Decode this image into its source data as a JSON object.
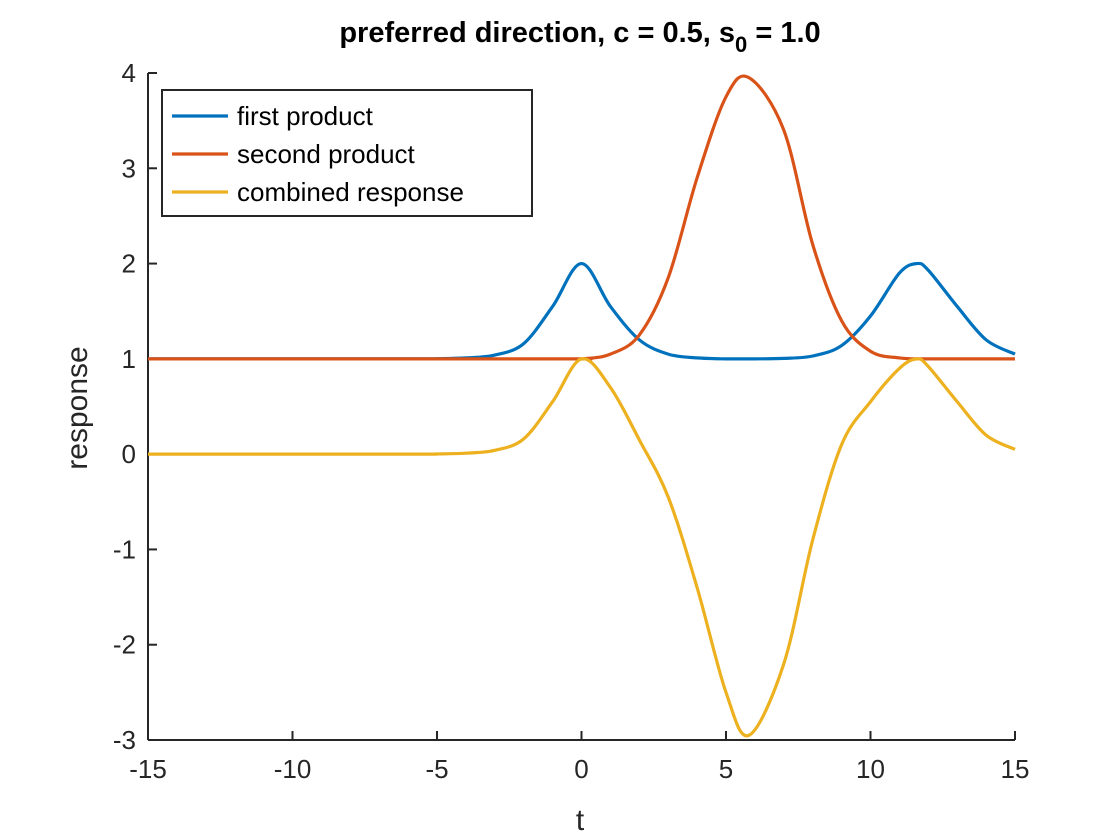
{
  "chart_data": {
    "type": "line",
    "title": {
      "main": "preferred direction,  c =   0.5, s",
      "subscript": "0",
      "tail": " =   1.0"
    },
    "xlabel": "t",
    "ylabel": "response",
    "xlim": [
      -15,
      15
    ],
    "ylim": [
      -3,
      4
    ],
    "xticks": [
      -15,
      -10,
      -5,
      0,
      5,
      10,
      15
    ],
    "yticks": [
      -3,
      -2,
      -1,
      0,
      1,
      2,
      3,
      4
    ],
    "grid": false,
    "legend_position": "top-left",
    "series": [
      {
        "name": "first product",
        "color": "#0072BD",
        "x": [
          -15,
          -6,
          -5,
          -4,
          -3,
          -2,
          -1,
          0,
          1,
          2,
          3,
          4,
          5,
          6,
          7,
          8,
          9,
          10,
          11,
          11.6,
          12,
          13,
          14,
          15
        ],
        "y": [
          1,
          1,
          1.002,
          1.01,
          1.04,
          1.16,
          1.55,
          2.0,
          1.55,
          1.2,
          1.05,
          1.01,
          1.0,
          1.0,
          1.005,
          1.03,
          1.14,
          1.45,
          1.9,
          2.0,
          1.93,
          1.55,
          1.2,
          1.05
        ]
      },
      {
        "name": "second product",
        "color": "#D95319",
        "x": [
          -15,
          -1,
          0,
          1,
          2,
          3,
          4,
          5,
          5.8,
          7,
          8,
          9,
          10,
          11,
          12,
          15
        ],
        "y": [
          1,
          1,
          1.0,
          1.05,
          1.25,
          1.85,
          2.9,
          3.75,
          3.95,
          3.4,
          2.2,
          1.4,
          1.08,
          1.01,
          1.0,
          1.0
        ],
        "smooth": true
      },
      {
        "name": "combined response",
        "color": "#EDB120",
        "x": [
          -15,
          -6,
          -5,
          -4,
          -3,
          -2,
          -1,
          0,
          1,
          2,
          3,
          4,
          5,
          5.8,
          7,
          8,
          9,
          10,
          11,
          11.6,
          12,
          13,
          14,
          15
        ],
        "y": [
          0,
          0,
          0.002,
          0.01,
          0.04,
          0.16,
          0.55,
          1.0,
          0.7,
          0.15,
          -0.45,
          -1.4,
          -2.5,
          -2.95,
          -2.2,
          -0.9,
          0.1,
          0.55,
          0.9,
          1.0,
          0.92,
          0.55,
          0.2,
          0.05
        ]
      }
    ]
  }
}
